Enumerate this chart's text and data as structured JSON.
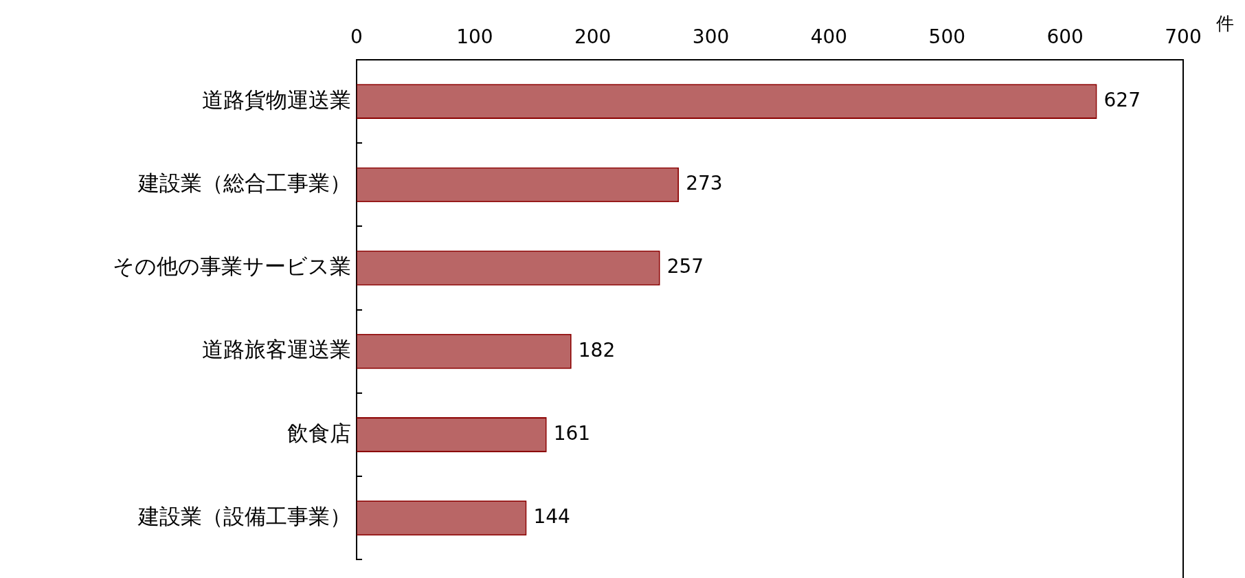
{
  "chart_data": {
    "type": "bar",
    "orientation": "horizontal",
    "xlabel": "件",
    "categories": [
      "道路貨物運送業",
      "建設業（総合工事業）",
      "その他の事業サービス業",
      "道路旅客運送業",
      "飲食店",
      "建設業（設備工事業）"
    ],
    "values": [
      627,
      273,
      257,
      182,
      161,
      144
    ],
    "color": "#8b0000",
    "xlim": [
      0,
      700
    ],
    "xticks": [
      0,
      100,
      200,
      300,
      400,
      500,
      600,
      700
    ],
    "data_labels": true,
    "grid": false,
    "legend": false
  }
}
